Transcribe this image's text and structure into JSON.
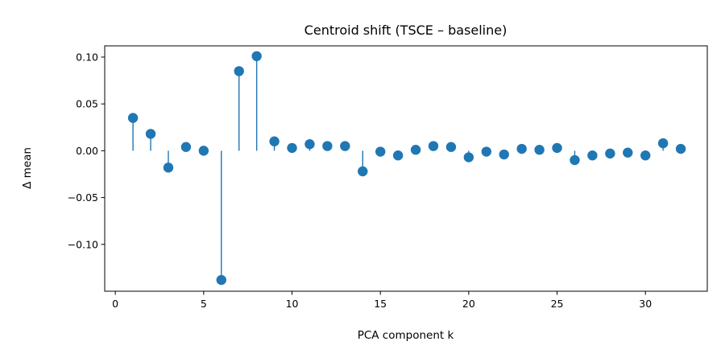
{
  "chart_data": {
    "type": "stem",
    "title": "Centroid shift (TSCE – baseline)",
    "xlabel": "PCA component k",
    "ylabel": "Δ mean",
    "xlim": [
      -0.6,
      33.5
    ],
    "ylim": [
      -0.15,
      0.112
    ],
    "x_ticks": [
      0,
      5,
      10,
      15,
      20,
      25,
      30
    ],
    "x_tick_labels": [
      "0",
      "5",
      "10",
      "15",
      "20",
      "25",
      "30"
    ],
    "y_ticks": [
      -0.1,
      -0.05,
      0.0,
      0.05,
      0.1
    ],
    "y_tick_labels": [
      "−0.10",
      "−0.05",
      "0.00",
      "0.05",
      "0.10"
    ],
    "grid": false,
    "legend": "none",
    "color": "#1f77b4",
    "x": [
      1,
      2,
      3,
      4,
      5,
      6,
      7,
      8,
      9,
      10,
      11,
      12,
      13,
      14,
      15,
      16,
      17,
      18,
      19,
      20,
      21,
      22,
      23,
      24,
      25,
      26,
      27,
      28,
      29,
      30,
      31,
      32
    ],
    "values": [
      0.035,
      0.018,
      -0.018,
      0.004,
      0.0,
      -0.138,
      0.085,
      0.101,
      0.01,
      0.003,
      0.007,
      0.005,
      0.005,
      -0.022,
      -0.001,
      -0.005,
      0.001,
      0.005,
      0.004,
      -0.007,
      -0.001,
      -0.004,
      0.002,
      0.001,
      0.003,
      -0.01,
      -0.005,
      -0.003,
      -0.002,
      -0.005,
      0.008,
      0.002
    ]
  }
}
